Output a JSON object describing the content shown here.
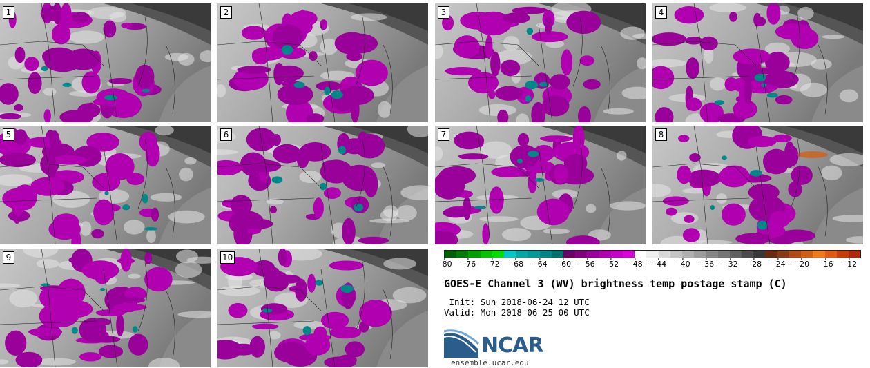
{
  "panels": [
    {
      "label": "1"
    },
    {
      "label": "2"
    },
    {
      "label": "3"
    },
    {
      "label": "4"
    },
    {
      "label": "5"
    },
    {
      "label": "6"
    },
    {
      "label": "7"
    },
    {
      "label": "8"
    },
    {
      "label": "9"
    },
    {
      "label": "10"
    }
  ],
  "colorbar": {
    "ticks": [
      "−80",
      "−76",
      "−72",
      "−68",
      "−64",
      "−60",
      "−56",
      "−52",
      "−48",
      "−44",
      "−40",
      "−36",
      "−32",
      "−28",
      "−24",
      "−20",
      "−16",
      "−12"
    ],
    "min": -80,
    "max": -10,
    "colors": [
      "#005f00",
      "#007a00",
      "#00a000",
      "#00c800",
      "#00e000",
      "#00c8c8",
      "#00a8a8",
      "#009a9a",
      "#008888",
      "#007070",
      "#6a006a",
      "#800080",
      "#9a009a",
      "#b000b0",
      "#c800c8",
      "#dc00dc",
      "#ffffff",
      "#ececec",
      "#d8d8d8",
      "#c4c4c4",
      "#b0b0b0",
      "#9c9c9c",
      "#888888",
      "#747474",
      "#606060",
      "#4c4c4c",
      "#383838",
      "#6b2a10",
      "#8a3a12",
      "#b04c14",
      "#d06018",
      "#f07a1a",
      "#e05a14",
      "#c83c0c",
      "#b02808"
    ]
  },
  "title": "GOES-E Channel 3 (WV) brightness temp postage stamp (C)",
  "init": " Init: Sun 2018-06-24 12 UTC",
  "valid": "Valid: Mon 2018-06-25 00 UTC",
  "logo": {
    "text": "NCAR",
    "color": "#2a5d8c"
  },
  "site": "ensemble.ucar.edu"
}
